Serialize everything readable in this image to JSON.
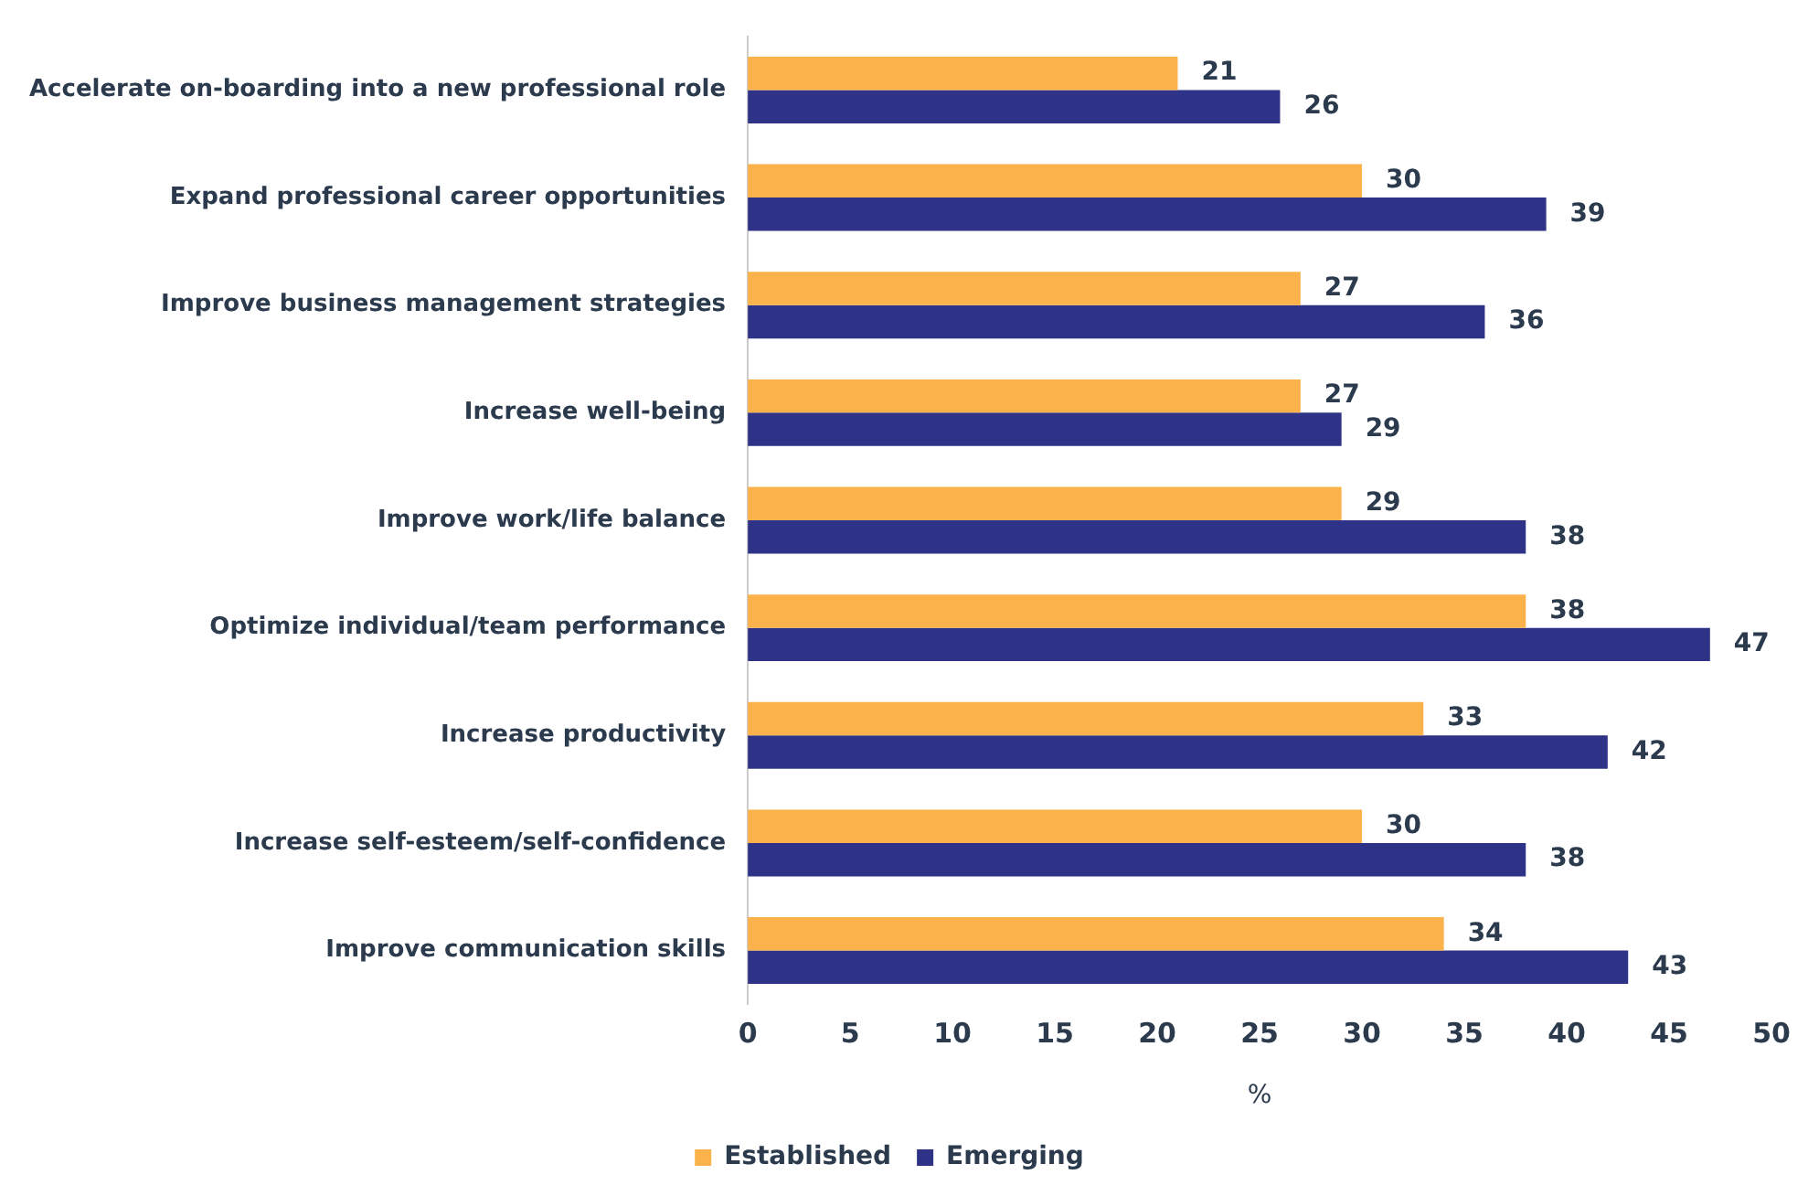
{
  "chart_data": {
    "type": "bar",
    "orientation": "horizontal",
    "xlabel": "%",
    "categories": [
      "Accelerate on-boarding into a new professional role",
      "Expand professional career opportunities",
      "Improve business management strategies",
      "Increase well-being",
      "Improve work/life balance",
      "Optimize individual/team performance",
      "Increase productivity",
      "Increase self-esteem/self-confidence",
      "Improve communication skills"
    ],
    "series": [
      {
        "name": "Established",
        "color": "#fbb24b",
        "values": [
          21,
          30,
          27,
          27,
          29,
          38,
          33,
          30,
          34
        ]
      },
      {
        "name": "Emerging",
        "color": "#2e3387",
        "values": [
          26,
          39,
          36,
          29,
          38,
          47,
          42,
          38,
          43
        ]
      }
    ],
    "xlim": [
      0,
      50
    ],
    "xticks": [
      0,
      5,
      10,
      15,
      20,
      25,
      30,
      35,
      40,
      45,
      50
    ],
    "grid": false,
    "legend": "bottom",
    "data_labels": true
  }
}
